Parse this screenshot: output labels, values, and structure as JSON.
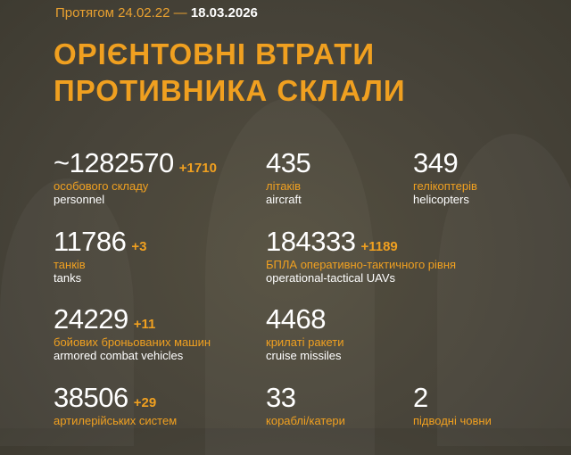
{
  "header": {
    "period_prefix": "Протягом 24.02.22 —",
    "period_end": "18.03.2026"
  },
  "title": {
    "line1": "ОРІЄНТОВНІ ВТРАТИ",
    "line2": "ПРОТИВНИКА СКЛАЛИ"
  },
  "colors": {
    "background": "#48443a",
    "accent": "#f0a020",
    "text": "#ffffff"
  },
  "stats": [
    {
      "value": "~1282570",
      "delta": "+1710",
      "ua": "особового складу",
      "en": "personnel"
    },
    {
      "value": "435",
      "delta": "",
      "ua": "літаків",
      "en": "aircraft"
    },
    {
      "value": "349",
      "delta": "",
      "ua": "гелікоптерів",
      "en": "helicopters"
    },
    {
      "value": "11786",
      "delta": "+3",
      "ua": "танків",
      "en": "tanks"
    },
    {
      "value": "184333",
      "delta": "+1189",
      "ua": "БПЛА оперативно-тактичного рівня",
      "en": "operational-tactical UAVs"
    },
    {
      "value": "24229",
      "delta": "+11",
      "ua": "бойових броньованих машин",
      "en": "armored combat vehicles"
    },
    {
      "value": "4468",
      "delta": "",
      "ua": "крилаті ракети",
      "en": "cruise missiles"
    },
    {
      "value": "38506",
      "delta": "+29",
      "ua": "артилерійських систем",
      "en": ""
    },
    {
      "value": "33",
      "delta": "",
      "ua": "кораблі/катери",
      "en": ""
    },
    {
      "value": "2",
      "delta": "",
      "ua": "підводні човни",
      "en": ""
    }
  ]
}
